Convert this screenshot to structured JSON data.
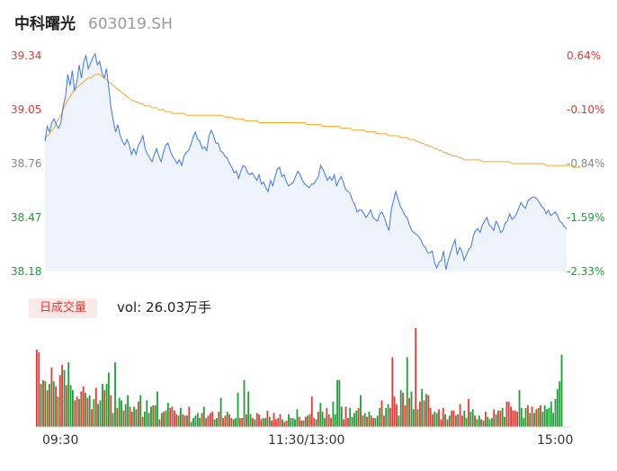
{
  "header": {
    "name": "中科曙光",
    "code": "603019.SH"
  },
  "price_axis": {
    "left_labels": [
      "39.34",
      "39.05",
      "38.76",
      "38.47",
      "38.18"
    ],
    "right_labels": [
      "0.64%",
      "-0.10%",
      "-0.84%",
      "-1.59%",
      "-2.33%"
    ],
    "colors": [
      "#e53935",
      "#e53935",
      "#888888",
      "#1aa035",
      "#1aa035"
    ]
  },
  "volume_panel": {
    "badge": "日成交量",
    "vol_label": "vol: 26.03万手"
  },
  "time_axis": [
    "09:30",
    "11:30/13:00",
    "15:00"
  ],
  "colors": {
    "price_line": "#3b78e7",
    "avg_line": "#f5a623",
    "up": "#e53935",
    "down": "#1aa035"
  },
  "chart_data": {
    "type": "line",
    "ylim": [
      38.18,
      39.34
    ],
    "x_range": [
      0,
      240
    ],
    "series": [
      {
        "values": [
          38.88,
          38.96,
          38.93,
          38.98,
          39.0,
          38.97,
          38.95,
          38.98,
          39.07,
          39.12,
          39.24,
          39.18,
          39.26,
          39.15,
          39.2,
          39.29,
          39.22,
          39.31,
          39.34,
          39.27,
          39.3,
          39.33,
          39.35,
          39.29,
          39.31,
          39.25,
          39.22,
          39.27,
          39.17,
          39.06,
          38.99,
          38.93,
          38.97,
          38.91,
          38.88,
          38.86,
          38.89,
          38.86,
          38.81,
          38.84,
          38.81,
          38.86,
          38.88,
          38.91,
          38.84,
          38.81,
          38.79,
          38.77,
          38.81,
          38.84,
          38.8,
          38.77,
          38.82,
          38.86,
          38.87,
          38.83,
          38.8,
          38.78,
          38.76,
          38.78,
          38.75,
          38.8,
          38.82,
          38.83,
          38.86,
          38.9,
          38.93,
          38.89,
          38.88,
          38.84,
          38.85,
          38.83,
          38.91,
          38.94,
          38.91,
          38.87,
          38.87,
          38.83,
          38.82,
          38.8,
          38.79,
          38.76,
          38.74,
          38.71,
          38.72,
          38.68,
          38.72,
          38.75,
          38.74,
          38.71,
          38.7,
          38.71,
          38.69,
          38.67,
          38.7,
          38.65,
          38.66,
          38.63,
          38.61,
          38.67,
          38.64,
          38.69,
          38.73,
          38.74,
          38.69,
          38.7,
          38.66,
          38.64,
          38.65,
          38.66,
          38.69,
          38.72,
          38.7,
          38.67,
          38.65,
          38.64,
          38.63,
          38.65,
          38.65,
          38.67,
          38.69,
          38.75,
          38.73,
          38.7,
          38.67,
          38.69,
          38.67,
          38.7,
          38.64,
          38.67,
          38.69,
          38.66,
          38.62,
          38.61,
          38.6,
          38.56,
          38.54,
          38.5,
          38.51,
          38.51,
          38.49,
          38.47,
          38.49,
          38.51,
          38.47,
          38.46,
          38.45,
          38.49,
          38.5,
          38.47,
          38.43,
          38.4,
          38.51,
          38.56,
          38.61,
          38.57,
          38.53,
          38.51,
          38.48,
          38.47,
          38.43,
          38.4,
          38.39,
          38.38,
          38.37,
          38.35,
          38.32,
          38.31,
          38.28,
          38.28,
          38.29,
          38.23,
          38.2,
          38.23,
          38.24,
          38.29,
          38.19,
          38.24,
          38.28,
          38.32,
          38.35,
          38.27,
          38.31,
          38.29,
          38.24,
          38.27,
          38.3,
          38.31,
          38.37,
          38.4,
          38.41,
          38.39,
          38.43,
          38.45,
          38.47,
          38.43,
          38.42,
          38.4,
          38.45,
          38.43,
          38.39,
          38.4,
          38.44,
          38.45,
          38.49,
          38.46,
          38.47,
          38.49,
          38.52,
          38.55,
          38.53,
          38.52,
          38.56,
          38.57,
          38.58,
          38.58,
          38.57,
          38.55,
          38.53,
          38.52,
          38.49,
          38.51,
          38.48,
          38.49,
          38.5,
          38.48,
          38.45,
          38.44,
          38.42,
          38.41
        ]
      },
      {
        "values": [
          38.89,
          38.91,
          38.92,
          38.94,
          38.95,
          38.98,
          39.0,
          39.02,
          39.05,
          39.08,
          39.1,
          39.12,
          39.14,
          39.16,
          39.17,
          39.18,
          39.19,
          39.2,
          39.21,
          39.22,
          39.22,
          39.23,
          39.24,
          39.24,
          39.24,
          39.23,
          39.22,
          39.21,
          39.2,
          39.19,
          39.18,
          39.17,
          39.16,
          39.15,
          39.14,
          39.13,
          39.12,
          39.11,
          39.1,
          39.1,
          39.09,
          39.09,
          39.08,
          39.08,
          39.07,
          39.07,
          39.07,
          39.06,
          39.06,
          39.06,
          39.05,
          39.05,
          39.05,
          39.04,
          39.04,
          39.04,
          39.03,
          39.03,
          39.03,
          39.03,
          39.03,
          39.03,
          39.02,
          39.02,
          39.02,
          39.02,
          39.02,
          39.02,
          39.02,
          39.02,
          39.02,
          39.02,
          39.02,
          39.02,
          39.02,
          39.02,
          39.02,
          39.02,
          39.02,
          39.01,
          39.01,
          39.01,
          39.01,
          39.0,
          39.0,
          39.0,
          39.0,
          39.0,
          38.99,
          38.99,
          38.99,
          38.99,
          38.99,
          38.99,
          38.98,
          38.98,
          38.98,
          38.98,
          38.98,
          38.98,
          38.98,
          38.98,
          38.98,
          38.98,
          38.98,
          38.98,
          38.98,
          38.98,
          38.98,
          38.98,
          38.98,
          38.98,
          38.98,
          38.98,
          38.98,
          38.97,
          38.97,
          38.97,
          38.97,
          38.97,
          38.97,
          38.97,
          38.96,
          38.96,
          38.96,
          38.96,
          38.96,
          38.96,
          38.96,
          38.96,
          38.95,
          38.95,
          38.95,
          38.95,
          38.95,
          38.94,
          38.94,
          38.94,
          38.94,
          38.94,
          38.94,
          38.93,
          38.93,
          38.93,
          38.93,
          38.93,
          38.92,
          38.92,
          38.92,
          38.92,
          38.92,
          38.91,
          38.91,
          38.91,
          38.91,
          38.91,
          38.9,
          38.9,
          38.9,
          38.9,
          38.89,
          38.89,
          38.89,
          38.88,
          38.88,
          38.87,
          38.87,
          38.86,
          38.86,
          38.85,
          38.85,
          38.84,
          38.84,
          38.83,
          38.83,
          38.82,
          38.82,
          38.81,
          38.81,
          38.8,
          38.8,
          38.8,
          38.79,
          38.79,
          38.78,
          38.78,
          38.78,
          38.78,
          38.78,
          38.78,
          38.78,
          38.78,
          38.77,
          38.77,
          38.77,
          38.77,
          38.77,
          38.77,
          38.77,
          38.77,
          38.77,
          38.77,
          38.77,
          38.77,
          38.77,
          38.76,
          38.76,
          38.76,
          38.76,
          38.76,
          38.76,
          38.76,
          38.76,
          38.76,
          38.76,
          38.76,
          38.76,
          38.76,
          38.76,
          38.76,
          38.75,
          38.75,
          38.75,
          38.75,
          38.75,
          38.75,
          38.75,
          38.75,
          38.75,
          38.75,
          38.75,
          38.75,
          38.74,
          38.74,
          38.74,
          38.74
        ]
      }
    ],
    "volume": [
      0.61,
      0.59,
      0.34,
      0.37,
      0.36,
      0.29,
      0.34,
      0.47,
      0.36,
      0.32,
      0.24,
      0.41,
      0.49,
      0.45,
      0.33,
      0.51,
      0.33,
      0.29,
      0.21,
      0.24,
      0.22,
      0.28,
      0.32,
      0.27,
      0.23,
      0.25,
      0.14,
      0.22,
      0.31,
      0.18,
      0.21,
      0.34,
      0.29,
      0.34,
      0.43,
      0.25,
      0.11,
      0.51,
      0.15,
      0.23,
      0.21,
      0.13,
      0.18,
      0.25,
      0.16,
      0.12,
      0.16,
      0.14,
      0.2,
      0.25,
      0.08,
      0.12,
      0.21,
      0.11,
      0.16,
      0.17,
      0.17,
      0.28,
      0.06,
      0.11,
      0.12,
      0.13,
      0.19,
      0.15,
      0.16,
      0.13,
      0.1,
      0.09,
      0.15,
      0.1,
      0.09,
      0.09,
      0.16,
      0.04,
      0.07,
      0.09,
      0.11,
      0.07,
      0.11,
      0.16,
      0.07,
      0.09,
      0.11,
      0.12,
      0.06,
      0.07,
      0.12,
      0.23,
      0.07,
      0.09,
      0.12,
      0.1,
      0.07,
      0.06,
      0.07,
      0.27,
      0.07,
      0.07,
      0.37,
      0.1,
      0.28,
      0.1,
      0.07,
      0.06,
      0.11,
      0.1,
      0.06,
      0.07,
      0.07,
      0.13,
      0.08,
      0.05,
      0.11,
      0.06,
      0.07,
      0.1,
      0.06,
      0.04,
      0.05,
      0.1,
      0.07,
      0.07,
      0.06,
      0.14,
      0.08,
      0.05,
      0.05,
      0.08,
      0.09,
      0.1,
      0.24,
      0.07,
      0.06,
      0.12,
      0.19,
      0.12,
      0.07,
      0.15,
      0.1,
      0.07,
      0.2,
      0.1,
      0.37,
      0.37,
      0.16,
      0.06,
      0.16,
      0.07,
      0.15,
      0.08,
      0.11,
      0.13,
      0.15,
      0.25,
      0.09,
      0.11,
      0.08,
      0.12,
      0.09,
      0.07,
      0.07,
      0.09,
      0.15,
      0.21,
      0.09,
      0.15,
      0.18,
      0.15,
      0.55,
      0.24,
      0.18,
      0.09,
      0.29,
      0.27,
      0.17,
      0.55,
      0.23,
      0.28,
      0.14,
      0.78,
      0.14,
      0.2,
      0.3,
      0.21,
      0.26,
      0.25,
      0.15,
      0.1,
      0.12,
      0.11,
      0.14,
      0.06,
      0.15,
      0.1,
      0.06,
      0.09,
      0.13,
      0.13,
      0.09,
      0.1,
      0.18,
      0.09,
      0.13,
      0.07,
      0.22,
      0.12,
      0.14,
      0.09,
      0.06,
      0.09,
      0.06,
      0.05,
      0.12,
      0.08,
      0.06,
      0.07,
      0.14,
      0.1,
      0.13,
      0.13,
      0.15,
      0.08,
      0.2,
      0.2,
      0.16,
      0.13,
      0.13,
      0.12,
      0.29,
      0.15,
      0.07,
      0.15,
      0.17,
      0.11,
      0.16,
      0.11,
      0.14,
      0.15,
      0.17,
      0.12,
      0.17,
      0.14,
      0.15,
      0.2,
      0.11,
      0.22,
      0.3,
      0.36,
      0.57
    ],
    "volume_up": [
      1,
      1,
      0,
      1,
      0,
      1,
      0,
      1,
      0,
      1,
      0,
      1,
      1,
      0,
      1,
      0,
      0,
      0,
      1,
      1,
      0,
      1,
      1,
      0,
      1,
      0,
      1,
      0,
      1,
      0,
      0,
      0,
      1,
      0,
      0,
      1,
      0,
      0,
      1,
      0,
      0,
      1,
      0,
      0,
      1,
      1,
      0,
      0,
      1,
      0,
      1,
      0,
      0,
      0,
      0,
      1,
      0,
      0,
      1,
      0,
      1,
      0,
      0,
      1,
      1,
      1,
      1,
      0,
      0,
      1,
      1,
      0,
      1,
      0,
      0,
      0,
      0,
      0,
      1,
      0,
      1,
      1,
      1,
      1,
      0,
      0,
      1,
      0,
      1,
      1,
      0,
      1,
      1,
      0,
      0,
      0,
      1,
      1,
      0,
      1,
      0,
      0,
      1,
      0,
      1,
      1,
      1,
      0,
      0,
      1,
      0,
      1,
      1,
      1,
      1,
      1,
      0,
      1,
      1,
      0,
      0,
      0,
      0,
      0,
      1,
      1,
      0,
      1,
      0,
      1,
      1,
      1,
      0,
      1,
      0,
      0,
      0,
      1,
      1,
      1,
      0,
      0,
      0,
      0,
      0,
      1,
      1,
      1,
      0,
      0,
      0,
      0,
      1,
      0,
      1,
      0,
      1,
      0,
      1,
      1,
      0,
      0,
      0,
      1,
      1,
      0,
      0,
      1,
      1,
      1,
      1,
      0,
      0,
      1,
      1,
      0,
      1,
      0,
      0,
      1,
      0,
      1,
      0,
      1,
      0,
      1,
      1,
      1,
      0,
      0,
      1,
      1,
      1,
      0,
      1,
      0,
      1,
      1,
      0,
      1,
      1,
      1,
      0,
      0,
      1,
      0,
      0,
      1,
      0,
      0,
      1,
      0,
      1,
      0,
      0,
      0,
      1,
      0,
      1,
      1,
      0,
      0,
      1,
      1,
      1,
      1,
      1,
      1,
      0,
      0,
      0,
      0,
      1,
      0,
      1,
      0,
      1,
      0,
      1
    ]
  }
}
